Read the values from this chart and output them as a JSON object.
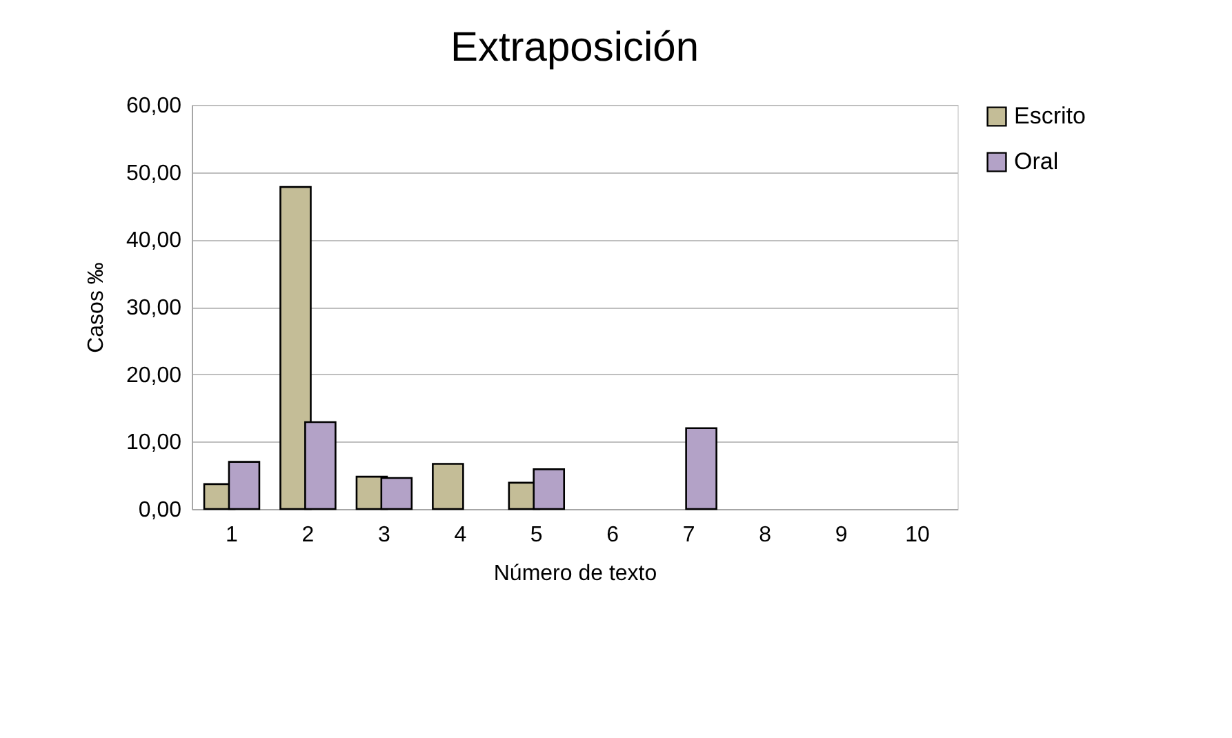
{
  "chart_data": {
    "type": "bar",
    "title": "Extraposición",
    "xlabel": "Número de texto",
    "ylabel": "Casos ‰",
    "categories": [
      "1",
      "2",
      "3",
      "4",
      "5",
      "6",
      "7",
      "8",
      "9",
      "10"
    ],
    "series": [
      {
        "name": "Escrito",
        "color": "#c4bd97",
        "values": [
          3.7,
          47.8,
          4.8,
          6.7,
          3.9,
          0,
          0,
          0,
          0,
          0
        ]
      },
      {
        "name": "Oral",
        "color": "#b3a2c7",
        "values": [
          7.0,
          12.9,
          4.6,
          0,
          5.9,
          0,
          12.0,
          0,
          0,
          0
        ]
      }
    ],
    "ylim": [
      0,
      60
    ],
    "yticks": [
      {
        "value": 0,
        "label": "0,00"
      },
      {
        "value": 10,
        "label": "10,00"
      },
      {
        "value": 20,
        "label": "20,00"
      },
      {
        "value": 30,
        "label": "30,00"
      },
      {
        "value": 40,
        "label": "40,00"
      },
      {
        "value": 50,
        "label": "50,00"
      },
      {
        "value": 60,
        "label": "60,00"
      }
    ],
    "grid": "y",
    "legend": "right"
  }
}
